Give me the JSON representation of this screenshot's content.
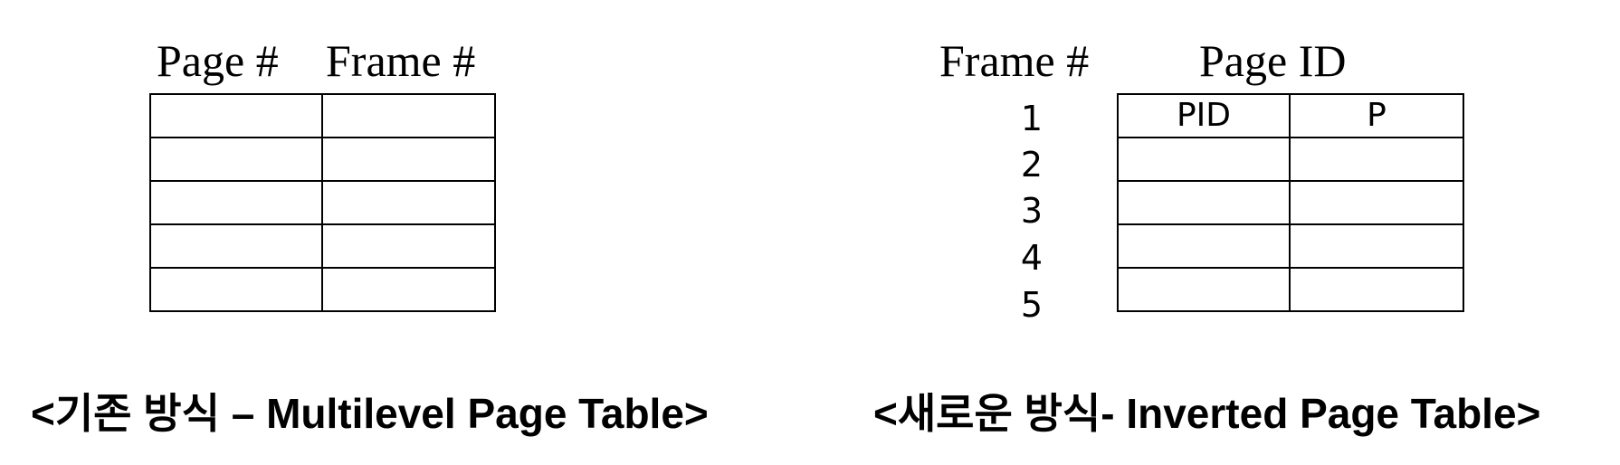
{
  "multilevel": {
    "header_page": "Page #",
    "header_frame": "Frame #",
    "rows": [
      [
        "",
        ""
      ],
      [
        "",
        ""
      ],
      [
        "",
        ""
      ],
      [
        "",
        ""
      ],
      [
        "",
        ""
      ]
    ],
    "caption": "<기존 방식 – Multilevel Page Table>"
  },
  "inverted": {
    "header_frame": "Frame #",
    "header_page_id": "Page ID",
    "frame_numbers": [
      "1",
      "2",
      "3",
      "4",
      "5"
    ],
    "rows": [
      [
        "PID",
        "P"
      ],
      [
        "",
        ""
      ],
      [
        "",
        ""
      ],
      [
        "",
        ""
      ],
      [
        "",
        ""
      ]
    ],
    "caption": "<새로운 방식- Inverted Page Table>"
  }
}
